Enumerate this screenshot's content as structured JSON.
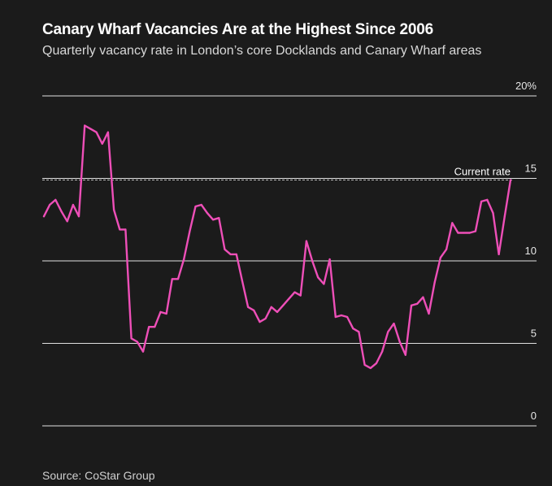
{
  "header": {
    "title": "Canary Wharf Vacancies Are at the Highest Since 2006",
    "subtitle": "Quarterly vacancy rate in London’s core Docklands and Canary Wharf areas"
  },
  "footer": {
    "source": "Source: CoStar Group"
  },
  "colors": {
    "background": "#1b1b1b",
    "line": "#ee4fb8",
    "grid": "#e0e0e0",
    "current_rate_line": "#bdbdbd"
  },
  "chart_data": {
    "type": "line",
    "title": "Canary Wharf Vacancies Are at the Highest Since 2006",
    "subtitle": "Quarterly vacancy rate in London’s core Docklands and Canary Wharf areas",
    "xlabel": "",
    "ylabel": "",
    "ylim": [
      0,
      20
    ],
    "y_ticks": [
      0,
      5,
      10,
      15,
      20
    ],
    "y_tick_labels": [
      "0",
      "5",
      "10",
      "15",
      "20%"
    ],
    "y_axis_side": "right",
    "grid": true,
    "legend": "none",
    "annotations": [
      {
        "label": "Current rate",
        "value": 14.9
      }
    ],
    "series": [
      {
        "values": [
          12.7,
          13.4,
          13.7,
          13.0,
          12.4,
          13.4,
          12.7,
          18.2,
          18.0,
          17.8,
          17.1,
          17.8,
          13.1,
          11.9,
          11.9,
          5.3,
          5.1,
          4.5,
          6.0,
          6.0,
          6.9,
          6.8,
          8.9,
          8.9,
          10.1,
          11.8,
          13.3,
          13.4,
          12.9,
          12.5,
          12.6,
          10.7,
          10.4,
          10.4,
          8.8,
          7.2,
          7.0,
          6.3,
          6.5,
          7.2,
          6.9,
          7.3,
          7.7,
          8.1,
          7.9,
          11.2,
          10.0,
          9.0,
          8.6,
          10.1,
          6.6,
          6.7,
          6.6,
          5.9,
          5.7,
          3.7,
          3.5,
          3.8,
          4.5,
          5.7,
          6.2,
          5.1,
          4.3,
          7.3,
          7.4,
          7.8,
          6.8,
          8.7,
          10.2,
          10.7,
          12.3,
          11.7,
          11.7,
          11.7,
          11.8,
          13.6,
          13.7,
          12.9,
          10.4,
          12.7,
          14.9
        ]
      }
    ]
  }
}
